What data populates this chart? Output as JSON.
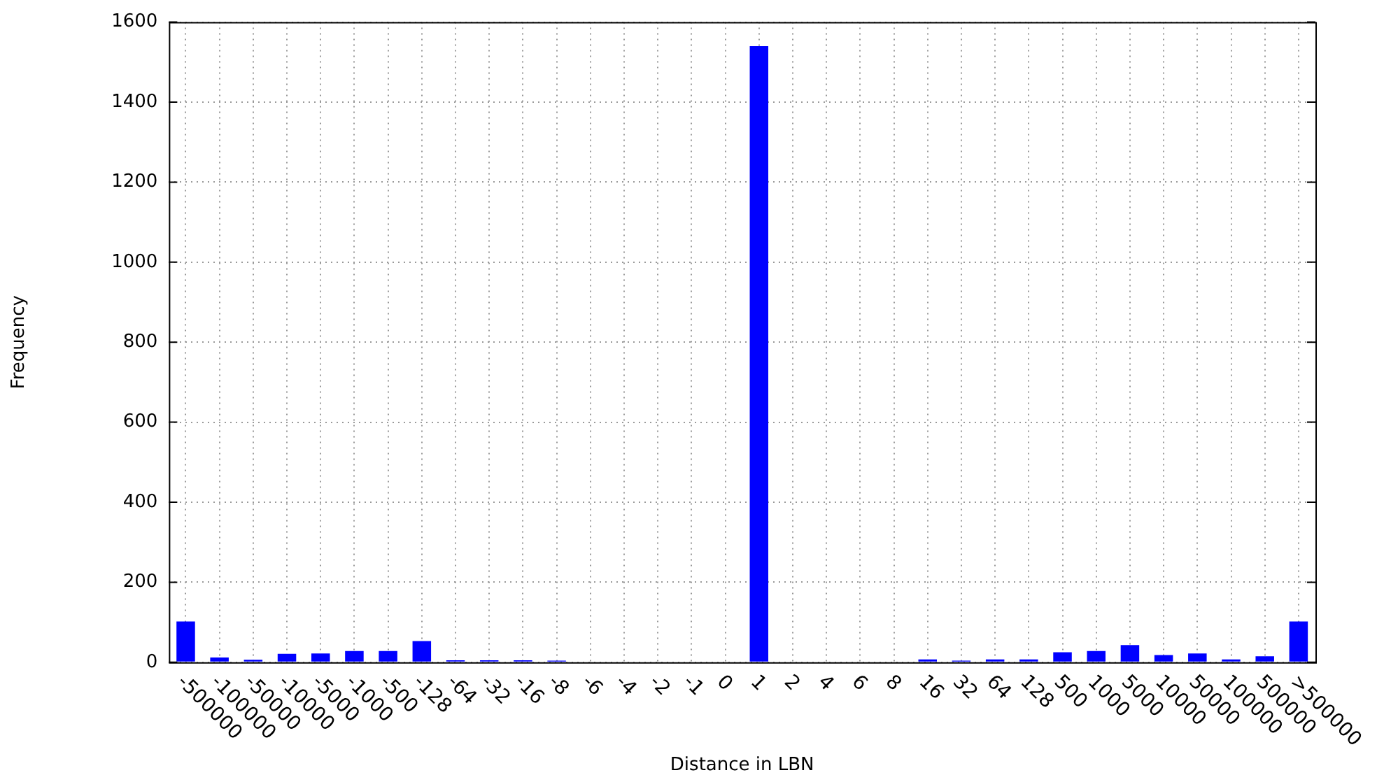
{
  "chart_data": {
    "type": "bar",
    "xlabel": "Distance in LBN",
    "ylabel": "Frequency",
    "categories": [
      "-500000",
      "-100000",
      "-50000",
      "-10000",
      "-5000",
      "-1000",
      "-500",
      "-128",
      "-64",
      "-32",
      "-16",
      "-8",
      "-6",
      "-4",
      "-2",
      "-1",
      "0",
      "1",
      "2",
      "4",
      "6",
      "8",
      "16",
      "32",
      "64",
      "128",
      "500",
      "1000",
      "5000",
      "10000",
      "50000",
      "100000",
      "500000",
      ">500000"
    ],
    "values": [
      102,
      12,
      6,
      21,
      22,
      28,
      28,
      53,
      5,
      5,
      5,
      4,
      0,
      0,
      0,
      0,
      0,
      1540,
      0,
      0,
      0,
      0,
      7,
      4,
      7,
      7,
      25,
      28,
      43,
      18,
      22,
      7,
      15,
      102
    ],
    "color": "#0000ff",
    "ylim": [
      0,
      1600
    ],
    "yticks": [
      0,
      200,
      400,
      600,
      800,
      1000,
      1200,
      1400,
      1600
    ],
    "grid": true
  }
}
